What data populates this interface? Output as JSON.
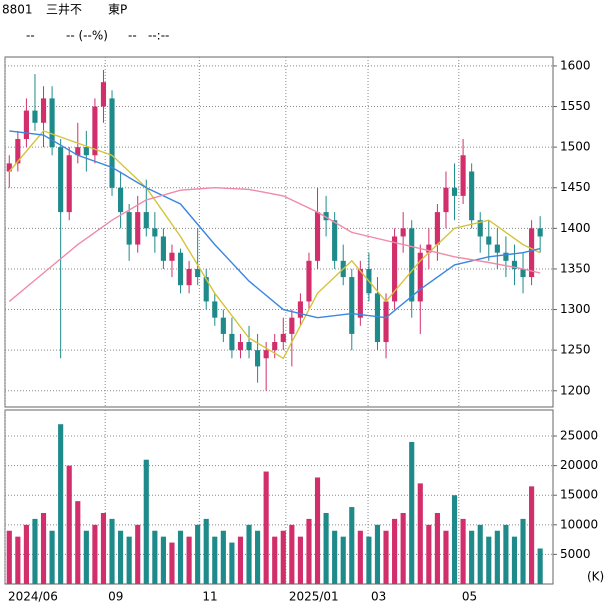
{
  "header": {
    "code": "8801",
    "name": "三井不",
    "market": "東P",
    "price": "--",
    "change": "-- (--%)",
    "volume": "--",
    "time": "--:--"
  },
  "chart_data": [
    {
      "type": "candlestick",
      "x": [
        0,
        1,
        2,
        3,
        4,
        5,
        6,
        7,
        8,
        9,
        10,
        11,
        12,
        13,
        14,
        15,
        16,
        17,
        18,
        19,
        20,
        21,
        22,
        23,
        24,
        25,
        26,
        27,
        28,
        29,
        30,
        31,
        32,
        33,
        34,
        35,
        36,
        37,
        38,
        39,
        40,
        41,
        42,
        43,
        44,
        45,
        46,
        47,
        48,
        49,
        50,
        51,
        52,
        53,
        54,
        55,
        56,
        57,
        58,
        59,
        60,
        61,
        62
      ],
      "open": [
        1470,
        1480,
        1510,
        1545,
        1530,
        1560,
        1500,
        1420,
        1490,
        1500,
        1490,
        1550,
        1560,
        1450,
        1420,
        1380,
        1420,
        1400,
        1390,
        1360,
        1370,
        1330,
        1350,
        1340,
        1310,
        1290,
        1270,
        1250,
        1260,
        1250,
        1240,
        1250,
        1260,
        1270,
        1290,
        1310,
        1360,
        1420,
        1410,
        1360,
        1340,
        1290,
        1350,
        1320,
        1260,
        1310,
        1390,
        1400,
        1310,
        1370,
        1380,
        1420,
        1450,
        1440,
        1470,
        1410,
        1390,
        1380,
        1370,
        1360,
        1350,
        1340,
        1400
      ],
      "high": [
        1490,
        1520,
        1560,
        1590,
        1575,
        1575,
        1510,
        1500,
        1530,
        1520,
        1560,
        1595,
        1570,
        1470,
        1430,
        1440,
        1460,
        1420,
        1400,
        1380,
        1375,
        1360,
        1400,
        1350,
        1320,
        1300,
        1290,
        1270,
        1280,
        1270,
        1260,
        1270,
        1290,
        1300,
        1320,
        1370,
        1450,
        1440,
        1420,
        1380,
        1350,
        1360,
        1370,
        1340,
        1320,
        1400,
        1420,
        1410,
        1380,
        1400,
        1430,
        1470,
        1480,
        1510,
        1480,
        1420,
        1410,
        1400,
        1390,
        1380,
        1370,
        1410,
        1415
      ],
      "low": [
        1450,
        1470,
        1500,
        1520,
        1500,
        1490,
        1240,
        1410,
        1480,
        1470,
        1480,
        1530,
        1440,
        1400,
        1360,
        1370,
        1390,
        1370,
        1350,
        1340,
        1320,
        1320,
        1330,
        1300,
        1280,
        1260,
        1240,
        1240,
        1240,
        1210,
        1200,
        1240,
        1250,
        1230,
        1280,
        1300,
        1350,
        1390,
        1350,
        1330,
        1250,
        1280,
        1310,
        1250,
        1240,
        1300,
        1370,
        1290,
        1270,
        1350,
        1360,
        1400,
        1410,
        1430,
        1400,
        1370,
        1360,
        1350,
        1340,
        1330,
        1320,
        1330,
        1370
      ],
      "close": [
        1480,
        1510,
        1545,
        1530,
        1560,
        1500,
        1420,
        1490,
        1500,
        1490,
        1550,
        1580,
        1450,
        1420,
        1380,
        1420,
        1400,
        1390,
        1360,
        1370,
        1330,
        1350,
        1340,
        1310,
        1290,
        1270,
        1250,
        1260,
        1250,
        1230,
        1250,
        1260,
        1270,
        1290,
        1310,
        1360,
        1420,
        1410,
        1360,
        1340,
        1270,
        1350,
        1320,
        1260,
        1310,
        1390,
        1400,
        1310,
        1370,
        1380,
        1420,
        1450,
        1440,
        1490,
        1410,
        1390,
        1380,
        1370,
        1360,
        1350,
        1340,
        1400,
        1390
      ],
      "up_color": "#d12e6b",
      "down_color": "#1e8a8a",
      "moving_averages": [
        {
          "color": "#d4c43a",
          "x": [
            0,
            4,
            8,
            12,
            16,
            20,
            24,
            28,
            32,
            36,
            40,
            44,
            48,
            52,
            56,
            60,
            62
          ],
          "values": [
            1470,
            1520,
            1505,
            1490,
            1450,
            1390,
            1320,
            1265,
            1240,
            1320,
            1360,
            1310,
            1360,
            1400,
            1410,
            1380,
            1370
          ]
        },
        {
          "color": "#3a86e0",
          "x": [
            0,
            4,
            8,
            12,
            16,
            20,
            24,
            28,
            32,
            36,
            40,
            44,
            48,
            52,
            56,
            60,
            62
          ],
          "values": [
            1520,
            1515,
            1490,
            1475,
            1450,
            1430,
            1380,
            1335,
            1300,
            1290,
            1295,
            1290,
            1325,
            1355,
            1365,
            1370,
            1375
          ]
        },
        {
          "color": "#f08aa8",
          "x": [
            0,
            4,
            8,
            12,
            16,
            20,
            24,
            28,
            32,
            36,
            40,
            44,
            48,
            52,
            56,
            60,
            62
          ],
          "values": [
            1310,
            1345,
            1380,
            1410,
            1435,
            1447,
            1450,
            1448,
            1440,
            1420,
            1395,
            1385,
            1375,
            1365,
            1358,
            1350,
            1345
          ]
        }
      ],
      "xlim": [
        -0.5,
        63.5
      ],
      "xticks": [
        {
          "value": -0.5,
          "label": "2024/06"
        },
        {
          "value": 11.2,
          "label": "09"
        },
        {
          "value": 22.2,
          "label": "11"
        },
        {
          "value": 32.3,
          "label": "2025/01"
        },
        {
          "value": 41.9,
          "label": "03"
        },
        {
          "value": 52.5,
          "label": "05"
        }
      ],
      "ylim": [
        1180,
        1611
      ],
      "yticks": [
        1200,
        1250,
        1300,
        1350,
        1400,
        1450,
        1500,
        1550,
        1600
      ],
      "grid": true
    },
    {
      "type": "bar",
      "values": [
        9000,
        8000,
        10000,
        11000,
        12000,
        9000,
        27000,
        20000,
        14000,
        9000,
        10000,
        12000,
        11000,
        9000,
        8000,
        10000,
        21000,
        9000,
        8000,
        7000,
        9000,
        8000,
        10000,
        11000,
        8000,
        9000,
        7000,
        8000,
        10000,
        9000,
        19000,
        8000,
        9000,
        10000,
        8000,
        11000,
        18000,
        12000,
        9000,
        8000,
        13000,
        9000,
        8000,
        10000,
        9000,
        11000,
        12000,
        24000,
        17000,
        10000,
        12000,
        9000,
        15000,
        11000,
        9000,
        10000,
        8000,
        9000,
        10000,
        8000,
        11000,
        16500,
        6000
      ],
      "ylim": [
        0,
        29400
      ],
      "yticks": [
        5000,
        10000,
        15000,
        20000,
        25000
      ],
      "unit_label": "(K)",
      "grid": true
    }
  ]
}
